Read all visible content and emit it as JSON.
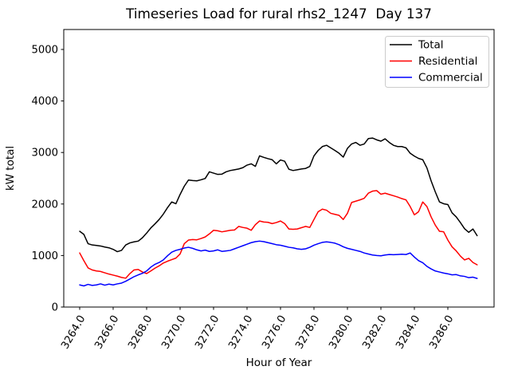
{
  "figure": {
    "background": "#ffffff",
    "spine_color": "#000000"
  },
  "legend": {
    "entries": [
      {
        "label": "Total"
      },
      {
        "label": "Residential"
      },
      {
        "label": "Commercial"
      }
    ],
    "border_color": "#cccccc"
  },
  "chart_data": {
    "type": "line",
    "title": "Timeseries Load for rural rhs2_1247  Day 137",
    "xlabel": "Hour of Year",
    "ylabel": "kW total",
    "xlim": [
      3263.048,
      3288.762
    ],
    "ylim": [
      0,
      5387
    ],
    "grid": false,
    "legend_position": "upper right",
    "x_ticks": {
      "values": [
        3264,
        3266,
        3268,
        3270,
        3272,
        3274,
        3276,
        3278,
        3280,
        3282,
        3284,
        3286
      ],
      "labels": [
        "3264.0",
        "3266.0",
        "3268.0",
        "3270.0",
        "3272.0",
        "3274.0",
        "3276.0",
        "3278.0",
        "3280.0",
        "3282.0",
        "3284.0",
        "3286.0"
      ],
      "rotation_deg": 60
    },
    "y_ticks": {
      "values": [
        0,
        1000,
        2000,
        3000,
        4000,
        5000
      ],
      "labels": [
        "0",
        "1000",
        "2000",
        "3000",
        "4000",
        "5000"
      ]
    },
    "x": [
      3264.0,
      3264.25,
      3264.5,
      3264.75,
      3265.0,
      3265.25,
      3265.5,
      3265.75,
      3266.0,
      3266.25,
      3266.5,
      3266.75,
      3267.0,
      3267.25,
      3267.5,
      3267.75,
      3268.0,
      3268.25,
      3268.5,
      3268.75,
      3269.0,
      3269.25,
      3269.5,
      3269.75,
      3270.0,
      3270.25,
      3270.5,
      3270.75,
      3271.0,
      3271.25,
      3271.5,
      3271.75,
      3272.0,
      3272.25,
      3272.5,
      3272.75,
      3273.0,
      3273.25,
      3273.5,
      3273.75,
      3274.0,
      3274.25,
      3274.5,
      3274.75,
      3275.0,
      3275.25,
      3275.5,
      3275.75,
      3276.0,
      3276.25,
      3276.5,
      3276.75,
      3277.0,
      3277.25,
      3277.5,
      3277.75,
      3278.0,
      3278.25,
      3278.5,
      3278.75,
      3279.0,
      3279.25,
      3279.5,
      3279.75,
      3280.0,
      3280.25,
      3280.5,
      3280.75,
      3281.0,
      3281.25,
      3281.5,
      3281.75,
      3282.0,
      3282.25,
      3282.5,
      3282.75,
      3283.0,
      3283.25,
      3283.5,
      3283.75,
      3284.0,
      3284.25,
      3284.5,
      3284.75,
      3285.0,
      3285.25,
      3285.5,
      3285.75,
      3286.0,
      3286.25,
      3286.5,
      3286.75,
      3287.0,
      3287.25,
      3287.5,
      3287.75
    ],
    "series": [
      {
        "name": "Total",
        "color": "#000000",
        "values": [
          1470,
          1410,
          1230,
          1205,
          1195,
          1185,
          1165,
          1150,
          1120,
          1075,
          1100,
          1205,
          1245,
          1265,
          1280,
          1345,
          1435,
          1535,
          1615,
          1700,
          1805,
          1930,
          2040,
          2005,
          2185,
          2345,
          2465,
          2455,
          2450,
          2470,
          2495,
          2625,
          2600,
          2575,
          2580,
          2625,
          2650,
          2665,
          2680,
          2705,
          2755,
          2780,
          2730,
          2935,
          2905,
          2880,
          2860,
          2780,
          2855,
          2830,
          2675,
          2650,
          2665,
          2680,
          2690,
          2730,
          2935,
          3040,
          3115,
          3140,
          3090,
          3040,
          2985,
          2910,
          3080,
          3165,
          3195,
          3140,
          3165,
          3270,
          3280,
          3245,
          3220,
          3265,
          3195,
          3140,
          3115,
          3115,
          3090,
          2985,
          2930,
          2885,
          2860,
          2700,
          2450,
          2235,
          2040,
          2005,
          1990,
          1830,
          1750,
          1640,
          1520,
          1450,
          1515,
          1385
        ]
      },
      {
        "name": "Residential",
        "color": "#ff0000",
        "values": [
          1050,
          900,
          760,
          720,
          700,
          690,
          665,
          640,
          620,
          600,
          575,
          560,
          650,
          720,
          730,
          680,
          650,
          700,
          755,
          800,
          855,
          890,
          920,
          950,
          1030,
          1230,
          1300,
          1310,
          1305,
          1330,
          1360,
          1420,
          1490,
          1480,
          1460,
          1475,
          1490,
          1495,
          1565,
          1545,
          1530,
          1490,
          1600,
          1670,
          1650,
          1645,
          1620,
          1640,
          1670,
          1620,
          1515,
          1510,
          1515,
          1540,
          1565,
          1545,
          1700,
          1850,
          1900,
          1880,
          1820,
          1800,
          1780,
          1700,
          1820,
          2030,
          2055,
          2080,
          2110,
          2210,
          2250,
          2260,
          2190,
          2210,
          2185,
          2160,
          2135,
          2105,
          2080,
          1950,
          1790,
          1850,
          2040,
          1950,
          1750,
          1590,
          1470,
          1460,
          1300,
          1170,
          1090,
          990,
          915,
          945,
          865,
          820
        ]
      },
      {
        "name": "Commercial",
        "color": "#0000ff",
        "values": [
          430,
          410,
          440,
          420,
          430,
          450,
          425,
          445,
          430,
          450,
          465,
          500,
          545,
          590,
          625,
          655,
          700,
          775,
          830,
          865,
          915,
          995,
          1065,
          1100,
          1120,
          1145,
          1160,
          1140,
          1110,
          1090,
          1105,
          1080,
          1090,
          1110,
          1080,
          1090,
          1100,
          1130,
          1160,
          1190,
          1220,
          1250,
          1270,
          1280,
          1270,
          1250,
          1230,
          1210,
          1200,
          1180,
          1160,
          1150,
          1130,
          1120,
          1130,
          1160,
          1200,
          1230,
          1255,
          1265,
          1255,
          1240,
          1210,
          1170,
          1140,
          1120,
          1100,
          1080,
          1050,
          1030,
          1010,
          1000,
          995,
          1010,
          1020,
          1015,
          1020,
          1025,
          1020,
          1050,
          970,
          900,
          860,
          790,
          740,
          700,
          680,
          660,
          645,
          625,
          630,
          605,
          595,
          570,
          580,
          555
        ]
      }
    ]
  }
}
